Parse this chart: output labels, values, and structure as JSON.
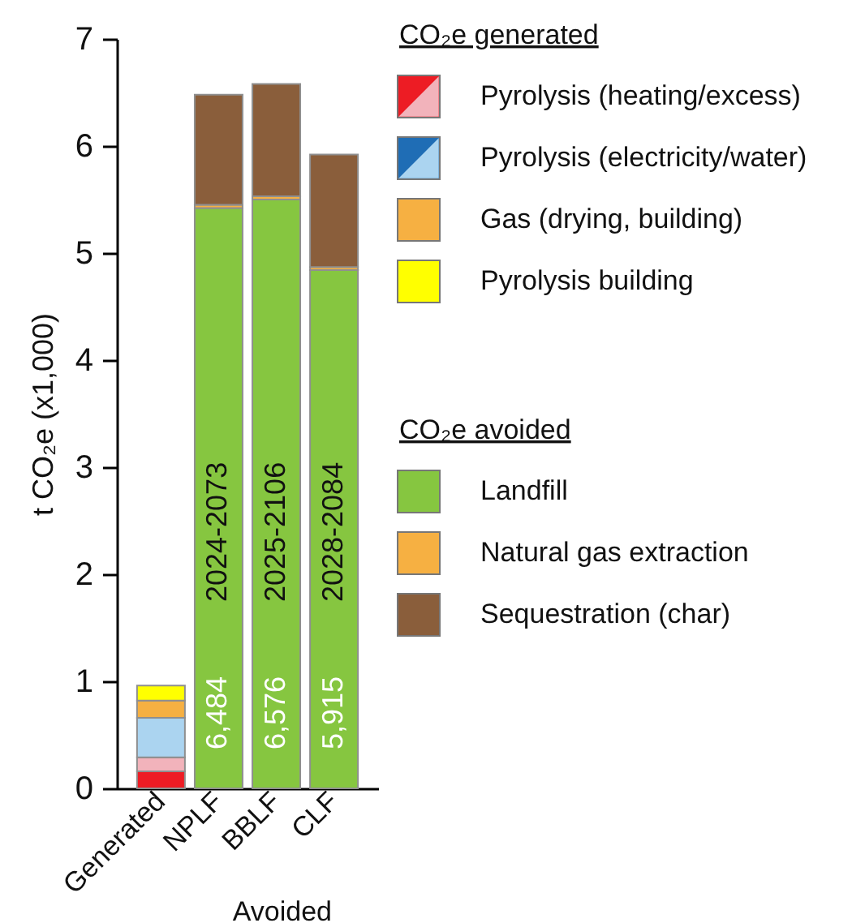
{
  "chart_data": {
    "type": "bar",
    "stacked": true,
    "categories": [
      "Generated",
      "NPLF",
      "BBLF",
      "CLF"
    ],
    "series": [
      {
        "name": "Pyrolysis (heating/excess)",
        "color": "#ed1c24",
        "values": [
          0.16,
          null,
          null,
          null
        ]
      },
      {
        "color": "#f2b3bb",
        "values": [
          0.13,
          null,
          null,
          null
        ]
      },
      {
        "name": "Pyrolysis (electricity/water)",
        "color": "#1f6db5",
        "values": [
          null,
          null,
          null,
          null
        ]
      },
      {
        "color": "#abd4f0",
        "values": [
          0.37,
          null,
          null,
          null
        ]
      },
      {
        "name": "Gas (drying, building)",
        "color": "#f6b042",
        "values": [
          0.16,
          null,
          null,
          null
        ]
      },
      {
        "name": "Pyrolysis building",
        "color": "#ffff00",
        "values": [
          0.14,
          null,
          null,
          null
        ]
      },
      {
        "name": "Landfill",
        "color": "#86c640",
        "values": [
          null,
          5.42,
          5.5,
          4.84
        ]
      },
      {
        "name": "Natural gas extraction",
        "color": "#f6b042",
        "values": [
          null,
          0.03,
          0.03,
          0.03
        ]
      },
      {
        "name": "Sequestration (char)",
        "color": "#8a5e3b",
        "values": [
          null,
          1.03,
          1.05,
          1.05
        ]
      }
    ],
    "ylabel": "t CO₂e (x1,000)",
    "xlabel": "Avoided",
    "legend_title": [
      "CO₂e generated",
      "CO₂e avoided"
    ],
    "ylim": [
      0,
      7
    ],
    "yticks": [
      0,
      1,
      2,
      3,
      4,
      5,
      6,
      7
    ],
    "legend": "right",
    "totals": [
      null,
      "6,484",
      "6,576",
      "5,915"
    ],
    "annotations": [
      "2024-2073",
      "2025-2106",
      "2028-2084"
    ]
  }
}
